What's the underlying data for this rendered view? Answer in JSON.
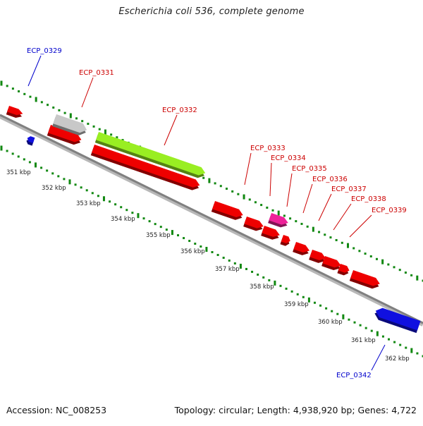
{
  "title": "Escherichia coli 536, complete genome",
  "footer": {
    "accession": "Accession: NC_008253",
    "summary": "Topology: circular; Length: 4,938,920 bp; Genes: 4,722"
  },
  "colors": {
    "forward_cds": "#ee0000",
    "reverse_cds": "#1010e0",
    "pseudogene": "#c8c8c8",
    "rna": "#99ee22",
    "other": "#ee2299",
    "label_forward": "#cc0000",
    "label_reverse": "#0000cc",
    "backbone": "#808080",
    "tick_track": "#118811"
  },
  "scale": {
    "tick_labels": [
      "351 kbp",
      "352 kbp",
      "353 kbp",
      "354 kbp",
      "355 kbp",
      "356 kbp",
      "357 kbp",
      "358 kbp",
      "359 kbp",
      "360 kbp",
      "361 kbp",
      "362 kbp"
    ]
  },
  "features": [
    {
      "label": "",
      "strand": "forward",
      "color": "forward_cds"
    },
    {
      "label": "",
      "strand": "forward",
      "color": "forward_cds"
    },
    {
      "label": "ECP_0329",
      "strand": "reverse",
      "color": "reverse_cds"
    },
    {
      "label": "ECP_0331",
      "strand": "forward",
      "color": "pseudogene"
    },
    {
      "label": "ECP_0332",
      "strand": "forward",
      "color": "rna"
    },
    {
      "label": "ECP_0333",
      "strand": "forward",
      "color": "forward_cds"
    },
    {
      "label": "ECP_0334",
      "strand": "forward",
      "color": "forward_cds"
    },
    {
      "label": "ECP_0335",
      "strand": "forward",
      "color": "forward_cds"
    },
    {
      "label": "ECP_0336",
      "strand": "forward",
      "color": "other"
    },
    {
      "label": "ECP_0337",
      "strand": "forward",
      "color": "forward_cds"
    },
    {
      "label": "ECP_0338",
      "strand": "forward",
      "color": "forward_cds"
    },
    {
      "label": "ECP_0339",
      "strand": "forward",
      "color": "forward_cds"
    },
    {
      "label": "",
      "strand": "forward",
      "color": "forward_cds"
    },
    {
      "label": "",
      "strand": "forward",
      "color": "forward_cds"
    },
    {
      "label": "",
      "strand": "forward",
      "color": "forward_cds"
    },
    {
      "label": "ECP_0342",
      "strand": "reverse",
      "color": "reverse_cds"
    }
  ]
}
